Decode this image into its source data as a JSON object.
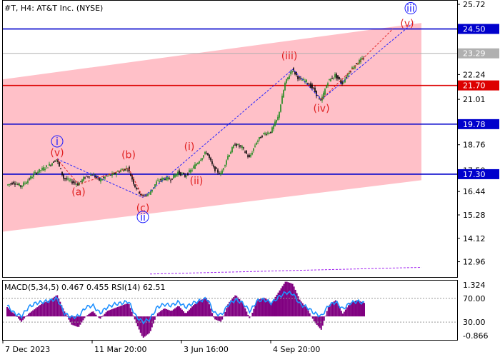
{
  "chart_data": {
    "type": "candlestick",
    "title": "#T, H4:  AT&T Inc. (NYSE)",
    "price_axis": {
      "ticks": [
        "25.72",
        "24.50",
        "23.29",
        "22.24",
        "21.70",
        "21.01",
        "19.78",
        "18.76",
        "17.50",
        "17.30",
        "16.44",
        "15.28",
        "14.12",
        "12.96"
      ],
      "ylim": [
        12.2,
        25.9
      ]
    },
    "time_axis": {
      "ticks": [
        "7 Dec 2023",
        "11 Mar 20:00",
        "3 Jun 16:00",
        "4 Sep 20:00"
      ]
    },
    "levels": [
      {
        "value": 24.5,
        "label": "24.50",
        "color": "#0000cc"
      },
      {
        "value": 23.29,
        "label": "23.29",
        "color": "#b0b0b0"
      },
      {
        "value": 21.7,
        "label": "21.70",
        "color": "#dd0000"
      },
      {
        "value": 19.78,
        "label": "19.78",
        "color": "#0000cc"
      },
      {
        "value": 17.3,
        "label": "17.30",
        "color": "#0000cc"
      }
    ],
    "price_series": [
      {
        "t": 0.0,
        "v": 16.75
      },
      {
        "t": 0.02,
        "v": 16.9
      },
      {
        "t": 0.04,
        "v": 16.7
      },
      {
        "t": 0.06,
        "v": 17.0
      },
      {
        "t": 0.08,
        "v": 17.35
      },
      {
        "t": 0.1,
        "v": 17.55
      },
      {
        "t": 0.12,
        "v": 17.75
      },
      {
        "t": 0.14,
        "v": 18.05
      },
      {
        "t": 0.16,
        "v": 17.1
      },
      {
        "t": 0.18,
        "v": 16.95
      },
      {
        "t": 0.2,
        "v": 16.8
      },
      {
        "t": 0.22,
        "v": 17.15
      },
      {
        "t": 0.24,
        "v": 17.3
      },
      {
        "t": 0.26,
        "v": 17.0
      },
      {
        "t": 0.28,
        "v": 17.2
      },
      {
        "t": 0.3,
        "v": 17.3
      },
      {
        "t": 0.32,
        "v": 17.5
      },
      {
        "t": 0.34,
        "v": 17.6
      },
      {
        "t": 0.36,
        "v": 16.7
      },
      {
        "t": 0.38,
        "v": 16.2
      },
      {
        "t": 0.4,
        "v": 16.35
      },
      {
        "t": 0.42,
        "v": 16.9
      },
      {
        "t": 0.44,
        "v": 17.1
      },
      {
        "t": 0.46,
        "v": 17.05
      },
      {
        "t": 0.48,
        "v": 17.4
      },
      {
        "t": 0.5,
        "v": 17.2
      },
      {
        "t": 0.52,
        "v": 17.55
      },
      {
        "t": 0.54,
        "v": 18.0
      },
      {
        "t": 0.56,
        "v": 18.4
      },
      {
        "t": 0.58,
        "v": 17.6
      },
      {
        "t": 0.6,
        "v": 17.3
      },
      {
        "t": 0.62,
        "v": 18.2
      },
      {
        "t": 0.64,
        "v": 18.8
      },
      {
        "t": 0.66,
        "v": 18.6
      },
      {
        "t": 0.68,
        "v": 18.1
      },
      {
        "t": 0.7,
        "v": 18.9
      },
      {
        "t": 0.72,
        "v": 19.3
      },
      {
        "t": 0.74,
        "v": 19.4
      },
      {
        "t": 0.76,
        "v": 20.1
      },
      {
        "t": 0.78,
        "v": 21.8
      },
      {
        "t": 0.8,
        "v": 22.5
      },
      {
        "t": 0.82,
        "v": 22.0
      },
      {
        "t": 0.84,
        "v": 21.9
      },
      {
        "t": 0.86,
        "v": 21.5
      },
      {
        "t": 0.88,
        "v": 20.9
      },
      {
        "t": 0.9,
        "v": 21.9
      },
      {
        "t": 0.92,
        "v": 22.2
      },
      {
        "t": 0.94,
        "v": 21.8
      },
      {
        "t": 0.96,
        "v": 22.4
      },
      {
        "t": 0.98,
        "v": 22.8
      },
      {
        "t": 1.0,
        "v": 23.05
      }
    ],
    "channel": {
      "upper": [
        {
          "t": 0.0,
          "v": 22.0
        },
        {
          "t": 1.16,
          "v": 24.8
        }
      ],
      "lower": [
        {
          "t": 0.0,
          "v": 14.45
        },
        {
          "t": 1.16,
          "v": 17.0
        }
      ],
      "color": "#ffc0c8"
    },
    "bottom_trend": [
      {
        "t": 0.4,
        "v": 12.35
      },
      {
        "t": 1.16,
        "v": 12.68
      }
    ],
    "wave_path": [
      {
        "t": 0.14,
        "v": 18.05
      },
      {
        "t": 0.38,
        "v": 16.15
      },
      {
        "t": 0.8,
        "v": 22.5
      },
      {
        "t": 0.88,
        "v": 21.0
      },
      {
        "t": 1.14,
        "v": 24.85
      }
    ],
    "wave_path_short": [
      {
        "t": 0.14,
        "v": 18.05
      },
      {
        "t": 0.2,
        "v": 16.8
      },
      {
        "t": 0.34,
        "v": 17.6
      },
      {
        "t": 0.38,
        "v": 16.15
      }
    ],
    "wave_target_path": [
      {
        "t": 0.88,
        "v": 21.0
      },
      {
        "t": 1.08,
        "v": 24.5
      }
    ],
    "wave_labels": [
      {
        "text": "i",
        "t": 0.14,
        "v": 18.75,
        "color": "blue",
        "circled": true
      },
      {
        "text": "(v)",
        "t": 0.14,
        "v": 18.2,
        "color": "red",
        "circled": false
      },
      {
        "text": "(a)",
        "t": 0.2,
        "v": 16.25,
        "color": "red",
        "circled": false
      },
      {
        "text": "(b)",
        "t": 0.34,
        "v": 18.1,
        "color": "red",
        "circled": false
      },
      {
        "text": "(c)",
        "t": 0.38,
        "v": 15.45,
        "color": "red",
        "circled": false
      },
      {
        "text": "ii",
        "t": 0.38,
        "v": 15.0,
        "color": "blue",
        "circled": true
      },
      {
        "text": "(i)",
        "t": 0.51,
        "v": 18.5,
        "color": "red",
        "circled": false
      },
      {
        "text": "(ii)",
        "t": 0.53,
        "v": 16.8,
        "color": "red",
        "circled": false
      },
      {
        "text": "(iii)",
        "t": 0.79,
        "v": 23.0,
        "color": "red",
        "circled": false
      },
      {
        "text": "(iv)",
        "t": 0.88,
        "v": 20.4,
        "color": "red",
        "circled": false
      },
      {
        "text": "(v)",
        "t": 1.12,
        "v": 24.6,
        "color": "red",
        "circled": false
      },
      {
        "text": "iii",
        "t": 1.13,
        "v": 25.35,
        "color": "blue",
        "circled": true
      }
    ],
    "indicator": {
      "label": "MACD(5,34,5) 0.467 0.455 RSI(14) 62.51",
      "ticks": [
        "1.324",
        "70.00",
        "30.00",
        "-0.866"
      ],
      "macd_hist": [
        0.35,
        0.1,
        -0.2,
        0.1,
        0.3,
        0.5,
        0.6,
        0.8,
        0.2,
        -0.3,
        -0.4,
        0.0,
        0.2,
        -0.1,
        0.2,
        0.3,
        0.4,
        0.5,
        -0.2,
        -0.8,
        -0.6,
        0.1,
        0.3,
        0.2,
        0.4,
        0.1,
        0.4,
        0.6,
        0.7,
        -0.1,
        -0.2,
        0.5,
        0.8,
        0.5,
        -0.1,
        0.6,
        0.7,
        0.5,
        0.9,
        1.3,
        1.2,
        0.6,
        0.3,
        -0.2,
        -0.5,
        0.4,
        0.6,
        0.1,
        0.5,
        0.6,
        0.5
      ],
      "rsi": [
        58,
        45,
        40,
        55,
        62,
        64,
        66,
        70,
        45,
        38,
        40,
        55,
        58,
        45,
        55,
        60,
        62,
        65,
        40,
        30,
        35,
        55,
        60,
        58,
        64,
        55,
        62,
        66,
        70,
        45,
        42,
        60,
        68,
        62,
        48,
        66,
        68,
        62,
        72,
        80,
        78,
        60,
        55,
        45,
        40,
        58,
        64,
        52,
        62,
        65,
        62
      ],
      "hist_color": "#800080",
      "rsi_color": "#1e90ff"
    }
  }
}
